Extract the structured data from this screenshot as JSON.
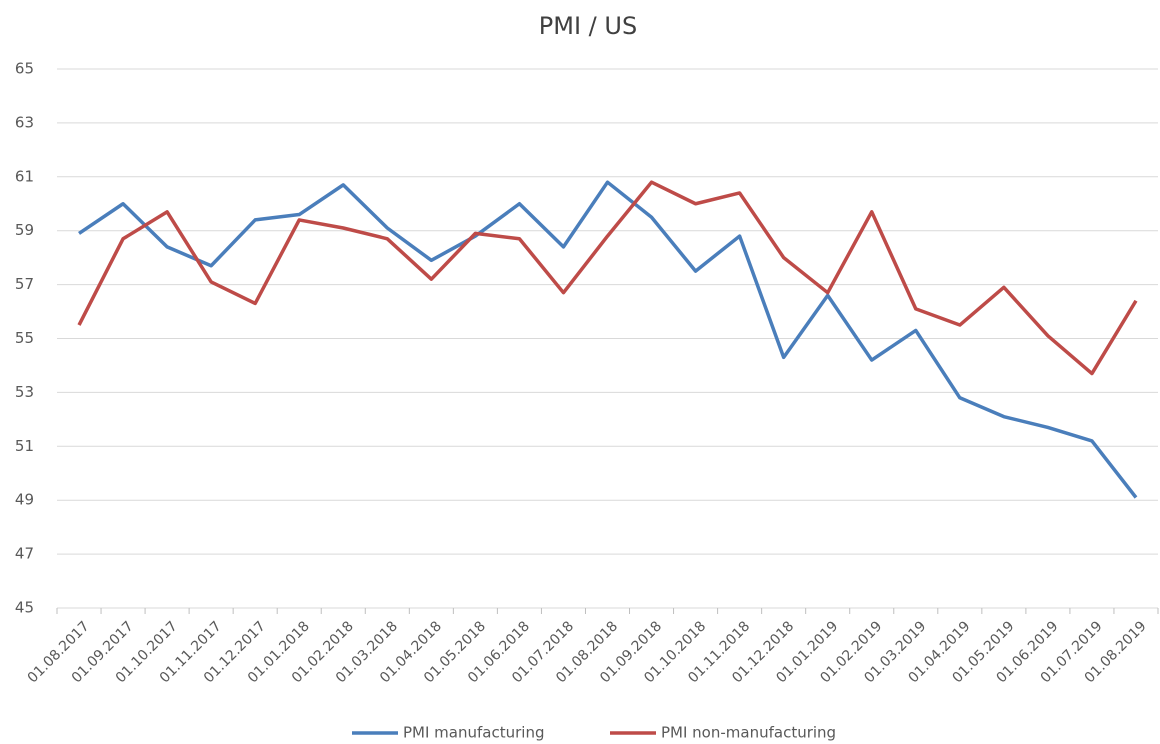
{
  "chart_data": {
    "type": "line",
    "title": "PMI / US",
    "categories": [
      "01.08.2017",
      "01.09.2017",
      "01.10.2017",
      "01.11.2017",
      "01.12.2017",
      "01.01.2018",
      "01.02.2018",
      "01.03.2018",
      "01.04.2018",
      "01.05.2018",
      "01.06.2018",
      "01.07.2018",
      "01.08.2018",
      "01.09.2018",
      "01.10.2018",
      "01.11.2018",
      "01.12.2018",
      "01.01.2019",
      "01.02.2019",
      "01.03.2019",
      "01.04.2019",
      "01.05.2019",
      "01.06.2019",
      "01.07.2019",
      "01.08.2019"
    ],
    "series": [
      {
        "name": "PMI manufacturing",
        "color": "#4a7ebb",
        "values": [
          58.9,
          60.0,
          58.4,
          57.7,
          59.4,
          59.6,
          60.7,
          59.1,
          57.9,
          58.8,
          60.0,
          58.4,
          60.8,
          59.5,
          57.5,
          58.8,
          54.3,
          56.6,
          54.2,
          55.3,
          52.8,
          52.1,
          51.7,
          51.2,
          49.1
        ]
      },
      {
        "name": "PMI non-manufacturing",
        "color": "#be4b48",
        "values": [
          55.5,
          58.7,
          59.7,
          57.1,
          56.3,
          59.4,
          59.1,
          58.7,
          57.2,
          58.9,
          58.7,
          56.7,
          58.8,
          60.8,
          60.0,
          60.4,
          58.0,
          56.7,
          59.7,
          56.1,
          55.5,
          56.9,
          55.1,
          53.7,
          56.4
        ]
      }
    ],
    "ylim": [
      45,
      65
    ],
    "yticks": [
      45,
      47,
      49,
      51,
      53,
      55,
      57,
      59,
      61,
      63,
      65
    ],
    "grid": true,
    "legend": "bottom"
  }
}
